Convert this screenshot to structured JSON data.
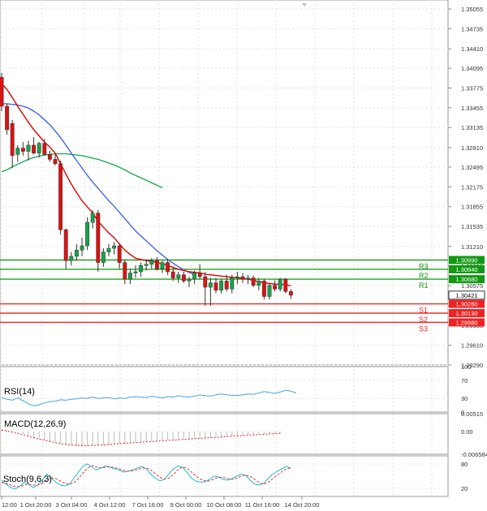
{
  "chart_data": {
    "type": "candlestick",
    "main": {
      "price_ticks": [
        "1.35055",
        "1.34735",
        "1.34410",
        "1.34095",
        "1.33775",
        "1.33455",
        "1.33135",
        "1.32810",
        "1.32495",
        "1.32175",
        "1.31855",
        "1.31535",
        "1.31210",
        "1.30890",
        "1.30575",
        "1.30255",
        "1.29935",
        "1.29610",
        "1.29290"
      ],
      "ylim": [
        1.2929,
        1.352
      ],
      "candles": [
        {
          "o": 1.3395,
          "h": 1.3402,
          "l": 1.334,
          "c": 1.3348
        },
        {
          "o": 1.3348,
          "h": 1.3352,
          "l": 1.3302,
          "c": 1.331
        },
        {
          "o": 1.332,
          "h": 1.3326,
          "l": 1.3248,
          "c": 1.3268
        },
        {
          "o": 1.327,
          "h": 1.3285,
          "l": 1.3258,
          "c": 1.328
        },
        {
          "o": 1.328,
          "h": 1.329,
          "l": 1.3268,
          "c": 1.3275
        },
        {
          "o": 1.3275,
          "h": 1.3292,
          "l": 1.326,
          "c": 1.3285
        },
        {
          "o": 1.3285,
          "h": 1.3298,
          "l": 1.327,
          "c": 1.3272
        },
        {
          "o": 1.3272,
          "h": 1.329,
          "l": 1.3265,
          "c": 1.3288
        },
        {
          "o": 1.3288,
          "h": 1.3295,
          "l": 1.3268,
          "c": 1.327
        },
        {
          "o": 1.327,
          "h": 1.3276,
          "l": 1.3258,
          "c": 1.3262
        },
        {
          "o": 1.3262,
          "h": 1.327,
          "l": 1.3252,
          "c": 1.3255
        },
        {
          "o": 1.3255,
          "h": 1.326,
          "l": 1.314,
          "c": 1.3148
        },
        {
          "o": 1.3148,
          "h": 1.315,
          "l": 1.3085,
          "c": 1.3098
        },
        {
          "o": 1.3098,
          "h": 1.3112,
          "l": 1.309,
          "c": 1.3105
        },
        {
          "o": 1.3105,
          "h": 1.3125,
          "l": 1.3098,
          "c": 1.3115
        },
        {
          "o": 1.3115,
          "h": 1.3135,
          "l": 1.3105,
          "c": 1.3122
        },
        {
          "o": 1.3122,
          "h": 1.3168,
          "l": 1.3115,
          "c": 1.316
        },
        {
          "o": 1.316,
          "h": 1.318,
          "l": 1.315,
          "c": 1.3175
        },
        {
          "o": 1.3175,
          "h": 1.318,
          "l": 1.308,
          "c": 1.3095
        },
        {
          "o": 1.3095,
          "h": 1.3118,
          "l": 1.3088,
          "c": 1.3112
        },
        {
          "o": 1.3112,
          "h": 1.3125,
          "l": 1.3105,
          "c": 1.3118
        },
        {
          "o": 1.3118,
          "h": 1.3128,
          "l": 1.3108,
          "c": 1.3122
        },
        {
          "o": 1.3122,
          "h": 1.3126,
          "l": 1.3085,
          "c": 1.3095
        },
        {
          "o": 1.3095,
          "h": 1.31,
          "l": 1.306,
          "c": 1.3068
        },
        {
          "o": 1.3068,
          "h": 1.3085,
          "l": 1.306,
          "c": 1.3078
        },
        {
          "o": 1.3078,
          "h": 1.309,
          "l": 1.307,
          "c": 1.308
        },
        {
          "o": 1.308,
          "h": 1.3095,
          "l": 1.3072,
          "c": 1.309
        },
        {
          "o": 1.309,
          "h": 1.31,
          "l": 1.3082,
          "c": 1.3092
        },
        {
          "o": 1.3092,
          "h": 1.3102,
          "l": 1.3085,
          "c": 1.3098
        },
        {
          "o": 1.3098,
          "h": 1.3104,
          "l": 1.3082,
          "c": 1.3085
        },
        {
          "o": 1.3085,
          "h": 1.3098,
          "l": 1.3078,
          "c": 1.3095
        },
        {
          "o": 1.3095,
          "h": 1.31,
          "l": 1.3075,
          "c": 1.308
        },
        {
          "o": 1.308,
          "h": 1.3086,
          "l": 1.3065,
          "c": 1.307
        },
        {
          "o": 1.307,
          "h": 1.308,
          "l": 1.3062,
          "c": 1.3075
        },
        {
          "o": 1.3075,
          "h": 1.308,
          "l": 1.3062,
          "c": 1.3065
        },
        {
          "o": 1.3065,
          "h": 1.3072,
          "l": 1.3055,
          "c": 1.3068
        },
        {
          "o": 1.3068,
          "h": 1.3082,
          "l": 1.306,
          "c": 1.3078
        },
        {
          "o": 1.3078,
          "h": 1.3092,
          "l": 1.3068,
          "c": 1.3072
        },
        {
          "o": 1.3072,
          "h": 1.308,
          "l": 1.3025,
          "c": 1.3055
        },
        {
          "o": 1.3055,
          "h": 1.307,
          "l": 1.3025,
          "c": 1.3062
        },
        {
          "o": 1.3062,
          "h": 1.307,
          "l": 1.3045,
          "c": 1.305
        },
        {
          "o": 1.305,
          "h": 1.3068,
          "l": 1.3045,
          "c": 1.3065
        },
        {
          "o": 1.3065,
          "h": 1.3075,
          "l": 1.3048,
          "c": 1.3052
        },
        {
          "o": 1.3052,
          "h": 1.3075,
          "l": 1.3045,
          "c": 1.307
        },
        {
          "o": 1.307,
          "h": 1.308,
          "l": 1.306,
          "c": 1.3072
        },
        {
          "o": 1.3072,
          "h": 1.3078,
          "l": 1.3062,
          "c": 1.3068
        },
        {
          "o": 1.3068,
          "h": 1.3075,
          "l": 1.306,
          "c": 1.307
        },
        {
          "o": 1.307,
          "h": 1.3074,
          "l": 1.3055,
          "c": 1.3058
        },
        {
          "o": 1.3058,
          "h": 1.307,
          "l": 1.305,
          "c": 1.3065
        },
        {
          "o": 1.3065,
          "h": 1.3068,
          "l": 1.3035,
          "c": 1.304
        },
        {
          "o": 1.304,
          "h": 1.306,
          "l": 1.3035,
          "c": 1.3058
        },
        {
          "o": 1.3058,
          "h": 1.3066,
          "l": 1.3048,
          "c": 1.3052
        },
        {
          "o": 1.3052,
          "h": 1.307,
          "l": 1.3048,
          "c": 1.3068
        },
        {
          "o": 1.3068,
          "h": 1.307,
          "l": 1.3045,
          "c": 1.3048
        },
        {
          "o": 1.3048,
          "h": 1.3052,
          "l": 1.3036,
          "c": 1.3042
        }
      ],
      "ma_fast": [
        1.3385,
        1.3375,
        1.3362,
        1.3348,
        1.3335,
        1.3322,
        1.331,
        1.33,
        1.329,
        1.3282,
        1.3272,
        1.3255,
        1.3238,
        1.3222,
        1.3208,
        1.3195,
        1.3185,
        1.3175,
        1.3162,
        1.3152,
        1.3143,
        1.3135,
        1.3125,
        1.3115,
        1.3108,
        1.3102,
        1.31,
        1.3098,
        1.3097,
        1.3095,
        1.3093,
        1.309,
        1.3087,
        1.3084,
        1.3082,
        1.308,
        1.3079,
        1.3078,
        1.3076,
        1.3075,
        1.3074,
        1.3073,
        1.3072,
        1.3071,
        1.307,
        1.3069,
        1.3068,
        1.3066,
        1.3064,
        1.3062,
        1.3061,
        1.306,
        1.306,
        1.3059,
        1.3057
      ],
      "ma_mid": [
        1.3352,
        1.3352,
        1.3351,
        1.335,
        1.3348,
        1.3345,
        1.334,
        1.3334,
        1.3326,
        1.3318,
        1.3308,
        1.3297,
        1.3285,
        1.3272,
        1.326,
        1.3248,
        1.3236,
        1.3225,
        1.3215,
        1.3205,
        1.3195,
        1.3186,
        1.3176,
        1.3166,
        1.3156,
        1.3146,
        1.3138,
        1.313,
        1.3122,
        1.3114,
        1.3107,
        1.31,
        1.3094,
        1.3088,
        1.3083,
        1.3079,
        1.3075
      ],
      "ma_slow": [
        1.3242,
        1.3245,
        1.325,
        1.3254,
        1.3258,
        1.3262,
        1.3265,
        1.3267,
        1.3269,
        1.327,
        1.3271,
        1.3271,
        1.3271,
        1.327,
        1.3269,
        1.3268,
        1.3266,
        1.3264,
        1.3262,
        1.3259,
        1.3256,
        1.3253,
        1.3249,
        1.3245,
        1.324,
        1.3236,
        1.3232,
        1.3228,
        1.3224,
        1.322,
        1.3216
      ],
      "resistance": [
        {
          "label": "R3",
          "value": 1.3099,
          "tag": "1.30990"
        },
        {
          "label": "R2",
          "value": 1.3084,
          "tag": "1.30840"
        },
        {
          "label": "R1",
          "value": 1.3068,
          "tag": "1.30680"
        }
      ],
      "current": {
        "value": 1.30421,
        "tag": "1.30421"
      },
      "support": [
        {
          "label": "S1",
          "value": 1.3028,
          "tag": "1.30280"
        },
        {
          "label": "S2",
          "value": 1.3013,
          "tag": "1.30130"
        },
        {
          "label": "S3",
          "value": 1.2998,
          "tag": "1.29980"
        }
      ]
    },
    "x_labels": [
      "12:00",
      "1 Oct 20:00",
      "3 Oct 04:00",
      "4 Oct 12:00",
      "7 Oct 16:00",
      "9 Oct 00:00",
      "10 Oct 08:00",
      "11 Oct 16:00",
      "14 Oct 20:00"
    ],
    "rsi": {
      "title": "RSI(14)",
      "ticks": [
        "100",
        "70",
        "30",
        "0"
      ],
      "ylim": [
        0,
        100
      ],
      "values": [
        32,
        28,
        26,
        31,
        25,
        18,
        14,
        16,
        20,
        23,
        24,
        27,
        26,
        28,
        29,
        31,
        30,
        33,
        30,
        31,
        32,
        29,
        31,
        30,
        33,
        34,
        33,
        32,
        35,
        33,
        31,
        34,
        33,
        36,
        34,
        33,
        35,
        38,
        36,
        35,
        38,
        40,
        38,
        37,
        36,
        38,
        40,
        39,
        42,
        45,
        43,
        41,
        44,
        48,
        46,
        42
      ]
    },
    "macd": {
      "title": "MACD(12,26,9)",
      "ticks": [
        "0.00515",
        "0.00",
        "-0.006584"
      ],
      "ylim": [
        -0.006584,
        0.00515
      ],
      "histogram": [
        0.0006,
        0.0003,
        0.0,
        -0.0004,
        -0.0008,
        -0.0012,
        -0.0016,
        -0.002,
        -0.0024,
        -0.0028,
        -0.0031,
        -0.0034,
        -0.0037,
        -0.004,
        -0.0042,
        -0.0043,
        -0.0043,
        -0.0042,
        -0.0041,
        -0.004,
        -0.0038,
        -0.0036,
        -0.0035,
        -0.0033,
        -0.0032,
        -0.0031,
        -0.003,
        -0.0029,
        -0.0028,
        -0.0027,
        -0.0026,
        -0.0025,
        -0.0024,
        -0.0023,
        -0.0022,
        -0.0021,
        -0.002,
        -0.0019,
        -0.0018,
        -0.0017,
        -0.0016,
        -0.0015,
        -0.0014,
        -0.0013,
        -0.0012,
        -0.0011,
        -0.001,
        -0.0009,
        -0.0008,
        -0.0007,
        -0.0006,
        -0.0005,
        -0.0004
      ],
      "signal": [
        0.0004,
        0.0001,
        -0.0002,
        -0.0006,
        -0.001,
        -0.0014,
        -0.0018,
        -0.0022,
        -0.0025,
        -0.0029,
        -0.0032,
        -0.0035,
        -0.0037,
        -0.0039,
        -0.004,
        -0.0041,
        -0.0041,
        -0.004,
        -0.004,
        -0.0039,
        -0.0038,
        -0.0036,
        -0.0035,
        -0.0034,
        -0.0033,
        -0.0032,
        -0.0031,
        -0.003,
        -0.0029,
        -0.0028,
        -0.0027,
        -0.0026,
        -0.0025,
        -0.0024,
        -0.0023,
        -0.0022,
        -0.0021,
        -0.002,
        -0.0019,
        -0.0018,
        -0.0017,
        -0.0016,
        -0.0015,
        -0.0014,
        -0.0013,
        -0.0012,
        -0.0011,
        -0.001,
        -0.0009,
        -0.0008,
        -0.0007,
        -0.0006,
        -0.0005
      ]
    },
    "stoch": {
      "title": "Stoch(9,6,3)",
      "ticks": [
        "80",
        "20"
      ],
      "ylim": [
        0,
        100
      ],
      "k": [
        40,
        30,
        22,
        18,
        25,
        35,
        30,
        22,
        28,
        40,
        55,
        45,
        35,
        28,
        26,
        30,
        45,
        60,
        75,
        80,
        72,
        65,
        70,
        75,
        72,
        68,
        65,
        60,
        62,
        66,
        70,
        74,
        68,
        55,
        45,
        38,
        42,
        55,
        68,
        75,
        72,
        60,
        45,
        38,
        35,
        36,
        42,
        50,
        48,
        42,
        40,
        44,
        50,
        55,
        52,
        40,
        30,
        28,
        32,
        45,
        55,
        62,
        68,
        74,
        70
      ],
      "d": [
        35,
        32,
        28,
        24,
        24,
        28,
        30,
        28,
        28,
        32,
        40,
        46,
        44,
        38,
        32,
        30,
        34,
        44,
        58,
        70,
        76,
        72,
        70,
        72,
        73,
        71,
        68,
        64,
        62,
        63,
        66,
        70,
        70,
        65,
        56,
        47,
        42,
        45,
        54,
        66,
        72,
        70,
        60,
        50,
        42,
        38,
        38,
        43,
        47,
        47,
        44,
        42,
        45,
        50,
        53,
        49,
        42,
        34,
        30,
        35,
        44,
        53,
        61,
        68,
        70
      ]
    },
    "colors": {
      "candle_up": "#17a34a",
      "candle_down": "#dd1111",
      "ma_fast": "#e00000",
      "ma_mid": "#4466dd",
      "ma_slow": "#22aa55",
      "resistance": "#119911",
      "support": "#ee2222",
      "rsi": "#4aa3e0",
      "macd_hist": "#bbbbbb",
      "macd_signal": "#dd2222",
      "stoch_k": "#22bbcc",
      "stoch_d": "#dd3333"
    }
  }
}
